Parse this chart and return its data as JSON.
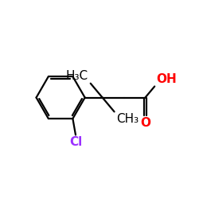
{
  "background_color": "#ffffff",
  "bond_color": "#000000",
  "cl_color": "#9b30ff",
  "oh_color": "#ff0000",
  "o_color": "#ff0000",
  "line_width": 1.6,
  "font_size_large": 11,
  "font_size_small": 9,
  "figsize": [
    2.5,
    2.5
  ],
  "dpi": 100,
  "xlim": [
    0,
    10
  ],
  "ylim": [
    0,
    10
  ]
}
